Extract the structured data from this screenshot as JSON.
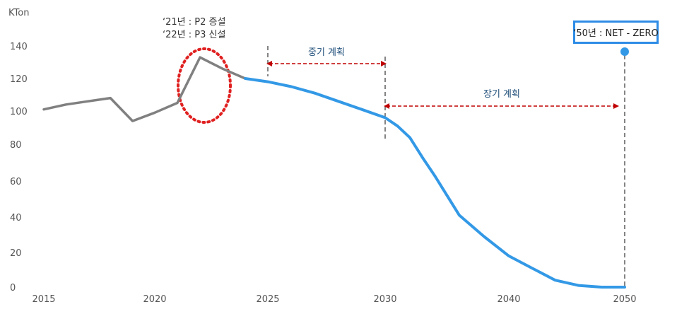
{
  "chart_data": {
    "type": "line",
    "ylabel": "KTon",
    "ylim": [
      0,
      140
    ],
    "yticks": [
      0,
      20,
      40,
      60,
      80,
      100,
      120,
      140
    ],
    "xlim": [
      2015,
      2052
    ],
    "xticks": [
      2015,
      2020,
      2025,
      2030,
      2040,
      2050
    ],
    "grid": false,
    "series": [
      {
        "color": "#808080",
        "x": [
          2015,
          2016,
          2017,
          2018,
          2019,
          2020,
          2021,
          2022,
          2023,
          2024
        ],
        "y": [
          101,
          104,
          106,
          108,
          94,
          99,
          105,
          133,
          126,
          120
        ]
      },
      {
        "color": "#3399e6",
        "x": [
          2024,
          2025,
          2026,
          2027,
          2028,
          2029,
          2030,
          2031,
          2032,
          2033,
          2034,
          2036,
          2038,
          2040,
          2042,
          2044,
          2046,
          2048,
          2050
        ],
        "y": [
          120,
          118,
          115,
          111,
          106,
          101,
          96,
          91,
          84,
          73,
          63,
          41,
          29,
          18,
          11,
          4,
          1,
          0,
          0
        ]
      }
    ],
    "annotations": {
      "expansion_lines": [
        "‘21년 : P2 증설",
        "‘22년 : P3 신설"
      ],
      "mid_plan": "중기 계획",
      "long_plan": "장기 계획",
      "net_zero": "‘50년 : NET - ZERO"
    },
    "colors": {
      "past": "#808080",
      "plan": "#3399e6",
      "highlight": "#e02020",
      "arrow": "#c00000"
    }
  }
}
